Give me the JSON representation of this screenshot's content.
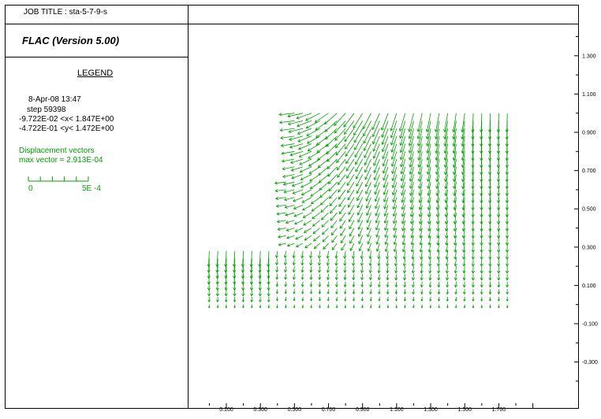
{
  "header": {
    "job_title": "JOB TITLE : sta-5-7-9-s",
    "program": "FLAC (Version 5.00)"
  },
  "legend": {
    "heading": "LEGEND",
    "date_line": "8-Apr-08  13:47",
    "step_line": "step    59398",
    "x_range_line": "-9.722E-02 <x<  1.847E+00",
    "y_range_line": "-4.722E-01 <y<  1.472E+00",
    "vectors_title": "Displacement vectors",
    "max_vector": "max vector =    2.913E-04",
    "scale_min": "0",
    "scale_max": "5E -4"
  },
  "colors": {
    "vector": "#00a000",
    "axis": "#000000"
  },
  "chart_data": {
    "type": "vector-field",
    "title": "Displacement vectors",
    "max_vector": 0.0002913,
    "x_range": [
      -0.09722,
      1.847
    ],
    "y_range": [
      -0.4722,
      1.472
    ],
    "x_ticks": [
      0.1,
      0.3,
      0.5,
      0.7,
      0.9,
      1.1,
      1.3,
      1.5,
      1.7
    ],
    "x_tick_labels": [
      "0.100",
      "0.300",
      "0.500",
      "0.700",
      "0.900",
      "1.100",
      "1.300",
      "1.500",
      "1.700"
    ],
    "y_ticks": [
      1.3,
      1.1,
      0.9,
      0.7,
      0.5,
      0.3,
      0.1,
      -0.1,
      -0.3
    ],
    "y_tick_labels": [
      "1.300",
      "1.100",
      "0.900",
      "0.700",
      "0.500",
      "0.300",
      "0.100",
      "-0.100",
      "-0.300"
    ],
    "grid": false,
    "field": {
      "x_start": 0.0,
      "x_end": 1.75,
      "x_count": 36,
      "y_bottom": 0.0,
      "y_mid": 0.3,
      "y_top": 1.0,
      "slope_x_bottom": 0.4,
      "slope_x_top": 0.5,
      "y_count": 26
    }
  }
}
